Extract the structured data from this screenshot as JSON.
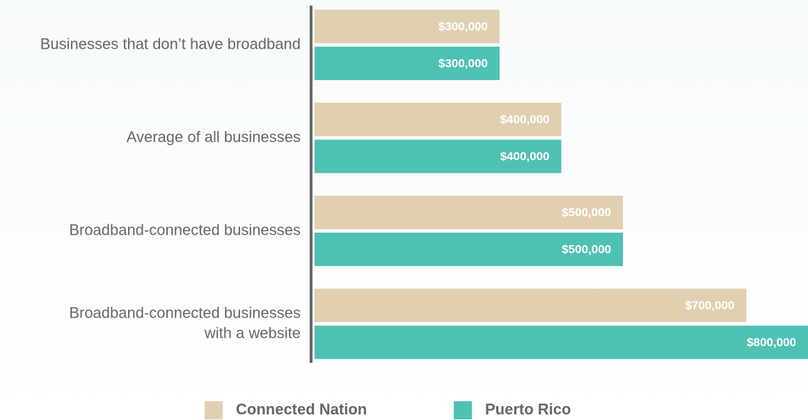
{
  "chart_data": {
    "type": "bar",
    "orientation": "horizontal",
    "categories": [
      "Businesses that don’t have broadband",
      "Average of all businesses",
      "Broadband-connected businesses",
      "Broadband-connected businesses\nwith a website"
    ],
    "series": [
      {
        "name": "Connected Nation",
        "color": "#e0d0b0",
        "values": [
          300000,
          400000,
          500000,
          700000
        ],
        "value_labels": [
          "$300,000",
          "$400,000",
          "$500,000",
          "$700,000"
        ]
      },
      {
        "name": "Puerto Rico",
        "color": "#4fc1b3",
        "values": [
          300000,
          400000,
          500000,
          800000
        ],
        "value_labels": [
          "$300,000",
          "$400,000",
          "$500,000",
          "$800,000"
        ]
      }
    ],
    "xlim": [
      0,
      800000
    ],
    "legend": "bottom"
  }
}
